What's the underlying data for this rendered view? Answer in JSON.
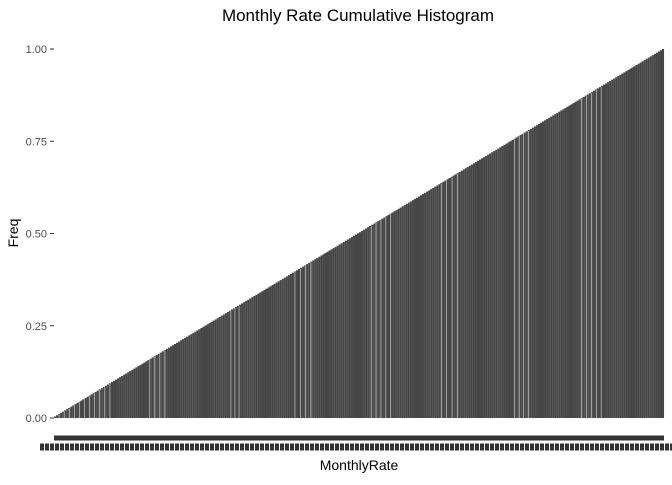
{
  "chart_data": {
    "type": "bar",
    "title": "Monthly Rate Cumulative  Histogram",
    "xlabel": "MonthlyRate",
    "ylabel": "Freq",
    "ylim": [
      0,
      1
    ],
    "y_ticks": [
      "0.00",
      "0.25",
      "0.50",
      "0.75",
      "1.00"
    ],
    "y_tick_values": [
      0,
      0.25,
      0.5,
      0.75,
      1
    ],
    "grid": false,
    "legend": "none",
    "bar_fill": "#474747",
    "x_tick_labels_legible": false,
    "series": [
      {
        "cumulative_frequency": {
          "start": 0.0007,
          "end": 1.0,
          "shape": "linear",
          "bins": 1427
        }
      }
    ]
  }
}
